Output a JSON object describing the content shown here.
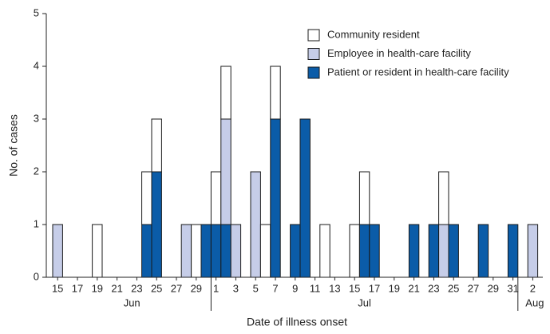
{
  "chart_data": {
    "type": "stacked-bar",
    "x_label": "Date of illness onset",
    "y_label": "No. of cases",
    "categories": [
      "15",
      null,
      "17",
      null,
      "19",
      null,
      "21",
      null,
      "23",
      null,
      "25",
      null,
      "27",
      null,
      "29",
      null,
      "1",
      null,
      "3",
      null,
      "5",
      null,
      "7",
      null,
      "9",
      null,
      "11",
      null,
      "13",
      null,
      "15",
      null,
      "17",
      null,
      "19",
      null,
      "21",
      null,
      "23",
      null,
      "25",
      null,
      "27",
      null,
      "29",
      null,
      "31",
      null,
      "2"
    ],
    "x_groups": [
      "Jun",
      "Jul",
      "Aug"
    ],
    "series": [
      {
        "name": "Community resident",
        "color": "#ffffff",
        "values": [
          0,
          0,
          0,
          0,
          1,
          0,
          0,
          0,
          0,
          1,
          1,
          0,
          0,
          0,
          1,
          0,
          1,
          1,
          0,
          0,
          0,
          1,
          1,
          0,
          0,
          0,
          0,
          1,
          0,
          0,
          1,
          1,
          0,
          0,
          0,
          0,
          0,
          0,
          0,
          1,
          0,
          0,
          0,
          0,
          0,
          0,
          0,
          0,
          0
        ]
      },
      {
        "name": "Employee in health-care facility",
        "color": "#c6cde8",
        "values": [
          1,
          0,
          0,
          0,
          0,
          0,
          0,
          0,
          0,
          0,
          0,
          0,
          0,
          1,
          0,
          0,
          0,
          2,
          1,
          0,
          2,
          0,
          0,
          0,
          0,
          0,
          0,
          0,
          0,
          0,
          0,
          0,
          0,
          0,
          0,
          0,
          0,
          0,
          0,
          1,
          0,
          0,
          0,
          0,
          0,
          0,
          0,
          0,
          1
        ]
      },
      {
        "name": "Patient or resident in health-care facility",
        "color": "#0b5ca8",
        "values": [
          0,
          0,
          0,
          0,
          0,
          0,
          0,
          0,
          0,
          1,
          2,
          0,
          0,
          0,
          0,
          1,
          1,
          1,
          0,
          0,
          0,
          0,
          3,
          0,
          1,
          3,
          0,
          0,
          0,
          0,
          0,
          1,
          1,
          0,
          0,
          0,
          1,
          0,
          1,
          0,
          1,
          0,
          0,
          1,
          0,
          0,
          1,
          0,
          0
        ]
      }
    ],
    "ylim": [
      0,
      5
    ],
    "yticks": [
      0,
      1,
      2,
      3,
      4,
      5
    ]
  }
}
